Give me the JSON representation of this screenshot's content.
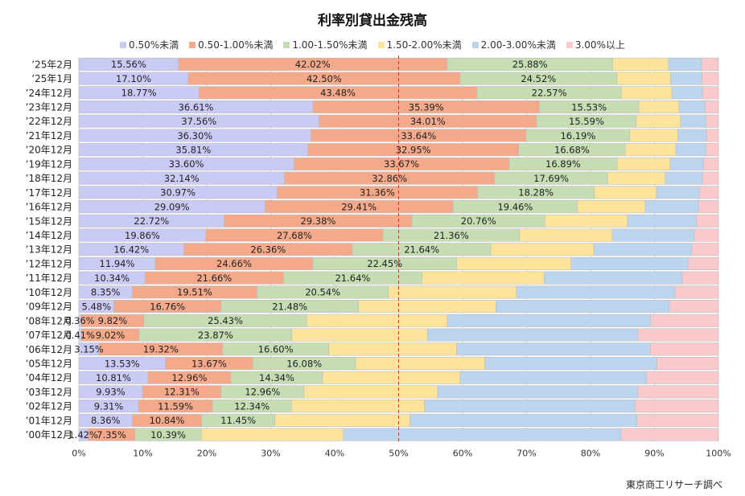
{
  "chart_data": {
    "type": "bar",
    "orientation": "horizontal",
    "stacked": "percent",
    "title": "利率別貸出金残高",
    "xlabel": "",
    "ylabel": "",
    "xlim": [
      0,
      100
    ],
    "x_ticks": [
      "0%",
      "10%",
      "20%",
      "30%",
      "40%",
      "50%",
      "60%",
      "70%",
      "80%",
      "90%",
      "100%"
    ],
    "grid": true,
    "legend_position": "top",
    "reference_line": {
      "value": 50,
      "style": "dashed",
      "color": "#c0392b"
    },
    "categories": [
      "’25年2月",
      "’25年1月",
      "’24年12月",
      "’23年12月",
      "’22年12月",
      "’21年12月",
      "’20年12月",
      "’19年12月",
      "’18年12月",
      "’17年12月",
      "’16年12月",
      "’15年12月",
      "’14年12月",
      "’13年12月",
      "’12年12月",
      "’11年12月",
      "’10年12月",
      "’09年12月",
      "’08年12月",
      "’07年12月",
      "’06年12月",
      "’05年12月",
      "’04年12月",
      "’03年12月",
      "’02年12月",
      "’01年12月",
      "’00年12月"
    ],
    "series": [
      {
        "name": "0.50%未満",
        "color": "#c9cbf5",
        "labeled": true,
        "values": [
          15.56,
          17.1,
          18.77,
          36.61,
          37.56,
          36.3,
          35.81,
          33.6,
          32.14,
          30.97,
          29.09,
          22.72,
          19.86,
          16.42,
          11.94,
          10.34,
          8.35,
          5.48,
          0.36,
          0.41,
          3.15,
          13.53,
          10.81,
          9.93,
          9.31,
          8.36,
          1.42
        ]
      },
      {
        "name": "0.50-1.00%未満",
        "color": "#f4a98a",
        "labeled": true,
        "values": [
          42.02,
          42.5,
          43.48,
          35.39,
          34.01,
          33.64,
          32.95,
          33.67,
          32.86,
          31.36,
          29.41,
          29.38,
          27.68,
          26.36,
          24.66,
          21.66,
          19.51,
          16.76,
          9.82,
          9.02,
          19.32,
          13.67,
          12.96,
          12.31,
          11.59,
          10.84,
          7.35
        ]
      },
      {
        "name": "1.00-1.50%未満",
        "color": "#c6ddb4",
        "labeled": true,
        "values": [
          25.88,
          24.52,
          22.57,
          15.53,
          15.59,
          16.19,
          16.68,
          16.89,
          17.69,
          18.28,
          19.46,
          20.76,
          21.36,
          21.64,
          22.45,
          21.64,
          20.54,
          21.48,
          25.43,
          23.87,
          16.6,
          16.08,
          14.34,
          12.96,
          12.34,
          11.45,
          10.39
        ]
      },
      {
        "name": "1.50-2.00%未満",
        "color": "#fde49a",
        "labeled": false,
        "values": [
          8.7,
          8.4,
          7.9,
          6.3,
          6.9,
          7.5,
          7.9,
          8.3,
          9.0,
          9.7,
          10.6,
          12.9,
          14.5,
          16.1,
          17.9,
          19.1,
          20.0,
          21.5,
          22.0,
          21.2,
          20.0,
          20.2,
          21.5,
          20.9,
          20.8,
          21.1,
          22.2
        ]
      },
      {
        "name": "2.00-3.00%未満",
        "color": "#bcd5ee",
        "labeled": false,
        "values": [
          5.2,
          4.9,
          4.8,
          4.1,
          4.0,
          4.5,
          4.7,
          5.2,
          5.8,
          6.7,
          8.3,
          10.8,
          12.8,
          15.3,
          18.3,
          21.6,
          24.8,
          27.1,
          31.8,
          32.9,
          30.3,
          26.9,
          29.1,
          31.3,
          32.9,
          35.5,
          43.4
        ]
      },
      {
        "name": "3.00%以上",
        "color": "#f9c9cc",
        "labeled": false,
        "values": [
          2.6,
          2.6,
          2.5,
          2.1,
          1.9,
          1.9,
          2.0,
          2.3,
          2.5,
          3.0,
          3.1,
          3.4,
          3.8,
          4.2,
          4.8,
          5.7,
          6.8,
          7.7,
          10.6,
          12.6,
          10.6,
          9.6,
          11.3,
          12.6,
          13.1,
          12.8,
          15.2
        ]
      }
    ],
    "source_note": "東京商工リサーチ調べ"
  }
}
